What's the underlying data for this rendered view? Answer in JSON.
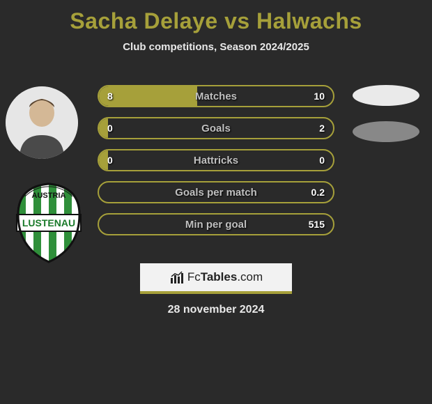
{
  "title": "Sacha Delaye vs Halwachs",
  "subtitle": "Club competitions, Season 2024/2025",
  "date": "28 november 2024",
  "branding": {
    "prefix": "Fc",
    "bold": "Tables",
    "suffix": ".com"
  },
  "colors": {
    "accent": "#a6a03a",
    "background": "#2a2a2a",
    "text": "#e8e8e8",
    "track": "#2a2a2a"
  },
  "club_logo": {
    "top_text": "AUSTRIA",
    "banner_text": "LUSTENAU",
    "stripe_colors": [
      "#2f8f3a",
      "#ffffff"
    ],
    "banner_bg": "#ffffff",
    "banner_text_color": "#1a7a2a"
  },
  "stats": [
    {
      "label": "Matches",
      "left_val": "8",
      "right_val": "10",
      "left_pct": 42,
      "right_pct": 0
    },
    {
      "label": "Goals",
      "left_val": "0",
      "right_val": "2",
      "left_pct": 4,
      "right_pct": 0
    },
    {
      "label": "Hattricks",
      "left_val": "0",
      "right_val": "0",
      "left_pct": 4,
      "right_pct": 0
    },
    {
      "label": "Goals per match",
      "left_val": "",
      "right_val": "0.2",
      "left_pct": 0,
      "right_pct": 0
    },
    {
      "label": "Min per goal",
      "left_val": "",
      "right_val": "515",
      "left_pct": 0,
      "right_pct": 0
    }
  ]
}
